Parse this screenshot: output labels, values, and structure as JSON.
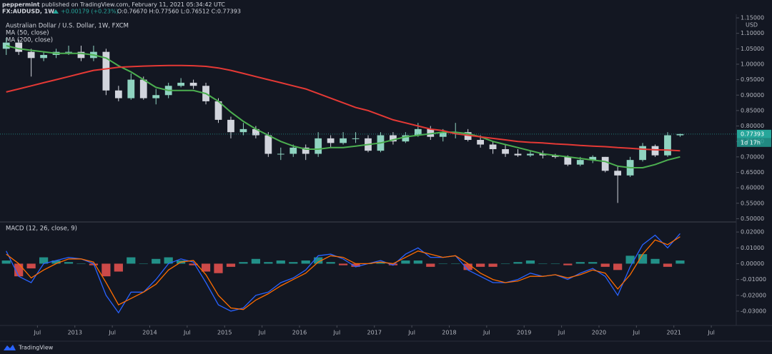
{
  "header": {
    "author": "peppermint",
    "published": "published on TradingView.com, February 11, 2021 05:34:42 UTC",
    "symbol": "FX:AUDUSD, 1W",
    "change": "+0.00179 (+0.23%)",
    "ohlc": "O:0.76670 H:0.77560 L:0.76512 C:0.77393"
  },
  "chart_data": {
    "type": "candlestick",
    "title": "Australian Dollar / U.S. Dollar, 1W, FXCM",
    "x": [
      "2012-02",
      "2012-04",
      "2012-06",
      "2012-08",
      "2012-10",
      "2012-12",
      "2013-02",
      "2013-04",
      "2013-06",
      "2013-08",
      "2013-10",
      "2013-12",
      "2014-02",
      "2014-04",
      "2014-06",
      "2014-08",
      "2014-10",
      "2014-12",
      "2015-02",
      "2015-04",
      "2015-06",
      "2015-08",
      "2015-10",
      "2015-12",
      "2016-02",
      "2016-04",
      "2016-06",
      "2016-08",
      "2016-10",
      "2016-12",
      "2017-02",
      "2017-04",
      "2017-06",
      "2017-08",
      "2017-10",
      "2017-12",
      "2018-02",
      "2018-04",
      "2018-06",
      "2018-08",
      "2018-10",
      "2018-12",
      "2019-02",
      "2019-04",
      "2019-06",
      "2019-08",
      "2019-10",
      "2019-12",
      "2020-02",
      "2020-04",
      "2020-06",
      "2020-08",
      "2020-10",
      "2020-12",
      "2021-02"
    ],
    "open": [
      1.05,
      1.07,
      1.04,
      1.02,
      1.03,
      1.04,
      1.04,
      1.02,
      1.04,
      0.915,
      0.89,
      0.95,
      0.89,
      0.9,
      0.93,
      0.94,
      0.93,
      0.88,
      0.82,
      0.78,
      0.79,
      0.77,
      0.71,
      0.71,
      0.73,
      0.71,
      0.76,
      0.745,
      0.76,
      0.76,
      0.72,
      0.77,
      0.75,
      0.77,
      0.79,
      0.765,
      0.78,
      0.78,
      0.755,
      0.74,
      0.725,
      0.71,
      0.705,
      0.71,
      0.705,
      0.7,
      0.675,
      0.69,
      0.7,
      0.655,
      0.64,
      0.69,
      0.735,
      0.705,
      0.77
    ],
    "high": [
      1.085,
      1.08,
      1.05,
      1.04,
      1.05,
      1.06,
      1.06,
      1.06,
      1.05,
      0.93,
      0.97,
      0.96,
      0.92,
      0.94,
      0.955,
      0.95,
      0.94,
      0.89,
      0.83,
      0.81,
      0.8,
      0.78,
      0.73,
      0.74,
      0.74,
      0.78,
      0.77,
      0.78,
      0.78,
      0.77,
      0.78,
      0.78,
      0.78,
      0.81,
      0.8,
      0.79,
      0.81,
      0.79,
      0.77,
      0.75,
      0.74,
      0.725,
      0.72,
      0.72,
      0.71,
      0.705,
      0.7,
      0.705,
      0.7,
      0.67,
      0.7,
      0.745,
      0.74,
      0.78,
      0.7756
    ],
    "low": [
      1.03,
      1.03,
      0.96,
      1.01,
      1.02,
      1.03,
      1.01,
      1.01,
      0.9,
      0.88,
      0.885,
      0.885,
      0.87,
      0.89,
      0.925,
      0.92,
      0.87,
      0.81,
      0.76,
      0.77,
      0.76,
      0.7,
      0.69,
      0.7,
      0.69,
      0.7,
      0.73,
      0.74,
      0.745,
      0.715,
      0.715,
      0.74,
      0.745,
      0.765,
      0.755,
      0.75,
      0.76,
      0.75,
      0.73,
      0.71,
      0.7,
      0.7,
      0.7,
      0.695,
      0.695,
      0.67,
      0.67,
      0.68,
      0.65,
      0.551,
      0.635,
      0.685,
      0.7,
      0.7,
      0.765
    ],
    "close": [
      1.07,
      1.04,
      1.02,
      1.03,
      1.04,
      1.04,
      1.02,
      1.04,
      0.915,
      0.89,
      0.95,
      0.89,
      0.9,
      0.93,
      0.94,
      0.93,
      0.88,
      0.82,
      0.78,
      0.79,
      0.77,
      0.71,
      0.71,
      0.73,
      0.71,
      0.76,
      0.745,
      0.76,
      0.76,
      0.72,
      0.77,
      0.75,
      0.77,
      0.79,
      0.765,
      0.78,
      0.78,
      0.755,
      0.74,
      0.725,
      0.71,
      0.705,
      0.71,
      0.705,
      0.7,
      0.675,
      0.69,
      0.7,
      0.655,
      0.64,
      0.69,
      0.735,
      0.705,
      0.77,
      0.77393
    ],
    "up_color": "#8fd3c0",
    "down_color": "#d1d4dc",
    "series": [
      {
        "name": "MA (50, close)",
        "color": "#4caf50",
        "values": [
          1.06,
          1.05,
          1.045,
          1.04,
          1.035,
          1.035,
          1.035,
          1.03,
          1.02,
          0.995,
          0.975,
          0.95,
          0.925,
          0.915,
          0.915,
          0.915,
          0.905,
          0.88,
          0.845,
          0.815,
          0.79,
          0.77,
          0.75,
          0.735,
          0.725,
          0.725,
          0.73,
          0.73,
          0.735,
          0.74,
          0.745,
          0.755,
          0.765,
          0.77,
          0.775,
          0.78,
          0.78,
          0.775,
          0.765,
          0.75,
          0.74,
          0.73,
          0.72,
          0.71,
          0.705,
          0.7,
          0.695,
          0.69,
          0.685,
          0.67,
          0.665,
          0.665,
          0.675,
          0.69,
          0.7
        ]
      },
      {
        "name": "MA (200, close)",
        "color": "#e53935",
        "values": [
          0.91,
          0.92,
          0.93,
          0.94,
          0.95,
          0.96,
          0.97,
          0.98,
          0.985,
          0.99,
          0.992,
          0.994,
          0.995,
          0.996,
          0.996,
          0.995,
          0.993,
          0.988,
          0.98,
          0.97,
          0.96,
          0.95,
          0.94,
          0.93,
          0.92,
          0.905,
          0.89,
          0.875,
          0.86,
          0.85,
          0.835,
          0.82,
          0.81,
          0.8,
          0.79,
          0.785,
          0.775,
          0.77,
          0.765,
          0.76,
          0.755,
          0.75,
          0.747,
          0.745,
          0.742,
          0.74,
          0.737,
          0.735,
          0.733,
          0.73,
          0.728,
          0.725,
          0.723,
          0.722,
          0.72
        ]
      }
    ],
    "xlim": [
      "2012-01",
      "2021-11"
    ],
    "xticks": [
      {
        "value": "2012-07",
        "label": "Jul"
      },
      {
        "value": "2013-01",
        "label": "2013"
      },
      {
        "value": "2013-07",
        "label": "Jul"
      },
      {
        "value": "2014-01",
        "label": "2014"
      },
      {
        "value": "2014-07",
        "label": "Jul"
      },
      {
        "value": "2015-01",
        "label": "2015"
      },
      {
        "value": "2015-07",
        "label": "Jul"
      },
      {
        "value": "2016-01",
        "label": "2016"
      },
      {
        "value": "2016-07",
        "label": "Jul"
      },
      {
        "value": "2017-01",
        "label": "2017"
      },
      {
        "value": "2017-07",
        "label": "Jul"
      },
      {
        "value": "2018-01",
        "label": "2018"
      },
      {
        "value": "2018-07",
        "label": "Jul"
      },
      {
        "value": "2019-01",
        "label": "2019"
      },
      {
        "value": "2019-07",
        "label": "Jul"
      },
      {
        "value": "2020-01",
        "label": "2020"
      },
      {
        "value": "2020-07",
        "label": "Jul"
      },
      {
        "value": "2021-01",
        "label": "2021"
      },
      {
        "value": "2021-07",
        "label": "Jul"
      }
    ],
    "ylabel": "USD",
    "ylim": [
      0.494,
      1.157
    ],
    "yticks": [
      {
        "value": 1.15,
        "label": "1.15000"
      },
      {
        "value": 1.1,
        "label": "1.10000"
      },
      {
        "value": 1.05,
        "label": "1.05000"
      },
      {
        "value": 1.0,
        "label": "1.00000"
      },
      {
        "value": 0.95,
        "label": "0.95000"
      },
      {
        "value": 0.9,
        "label": "0.90000"
      },
      {
        "value": 0.85,
        "label": "0.85000"
      },
      {
        "value": 0.8,
        "label": "0.80000"
      },
      {
        "value": 0.75,
        "label": "0.75000"
      },
      {
        "value": 0.7,
        "label": "0.70000"
      },
      {
        "value": 0.65,
        "label": "0.65000"
      },
      {
        "value": 0.6,
        "label": "0.60000"
      },
      {
        "value": 0.55,
        "label": "0.55000"
      },
      {
        "value": 0.5,
        "label": "0.50000"
      }
    ],
    "grid": false,
    "last_label": "0.77393",
    "countdown": "1d 17h",
    "last_color": "#26a69a",
    "macd": {
      "title": "MACD (12, 26, close, 9)",
      "ylim": [
        -0.0386,
        0.0259
      ],
      "yticks": [
        {
          "value": 0.02,
          "label": "0.02000"
        },
        {
          "value": 0.01,
          "label": "0.01000"
        },
        {
          "value": 0,
          "label": "0.00000"
        },
        {
          "value": -0.01,
          "label": "-0.01000"
        },
        {
          "value": -0.02,
          "label": "-0.02000"
        },
        {
          "value": -0.03,
          "label": "-0.03000"
        }
      ],
      "series": [
        {
          "color": "#2962ff",
          "values": [
            0.008,
            -0.008,
            -0.012,
            0.0,
            0.002,
            0.004,
            0.003,
            0.0,
            -0.02,
            -0.031,
            -0.018,
            -0.018,
            -0.01,
            0.0,
            0.003,
            0.001,
            -0.012,
            -0.026,
            -0.03,
            -0.028,
            -0.02,
            -0.018,
            -0.012,
            -0.009,
            -0.004,
            0.005,
            0.006,
            0.003,
            -0.002,
            0.0,
            0.002,
            -0.001,
            0.006,
            0.01,
            0.004,
            0.004,
            0.005,
            -0.004,
            -0.008,
            -0.012,
            -0.012,
            -0.01,
            -0.006,
            -0.008,
            -0.007,
            -0.01,
            -0.006,
            -0.003,
            -0.008,
            -0.02,
            -0.002,
            0.012,
            0.018,
            0.01,
            0.019
          ]
        },
        {
          "color": "#ff6d00",
          "values": [
            0.006,
            0.0,
            -0.009,
            -0.004,
            0.0,
            0.003,
            0.003,
            0.001,
            -0.012,
            -0.026,
            -0.022,
            -0.018,
            -0.013,
            -0.004,
            0.001,
            0.002,
            -0.007,
            -0.02,
            -0.028,
            -0.029,
            -0.023,
            -0.019,
            -0.014,
            -0.01,
            -0.006,
            0.001,
            0.005,
            0.004,
            0.0,
            0.0,
            0.001,
            0.0,
            0.004,
            0.008,
            0.006,
            0.004,
            0.005,
            0.0,
            -0.006,
            -0.01,
            -0.012,
            -0.011,
            -0.008,
            -0.008,
            -0.007,
            -0.009,
            -0.007,
            -0.004,
            -0.006,
            -0.016,
            -0.007,
            0.006,
            0.015,
            0.012,
            0.017
          ]
        }
      ],
      "histogram": {
        "positive_color": "#26a69a",
        "negative_color": "#ef5350",
        "values": [
          0.002,
          -0.008,
          -0.003,
          0.004,
          0.002,
          0.001,
          0.0,
          -0.001,
          -0.008,
          -0.005,
          0.004,
          0.0,
          0.003,
          0.004,
          0.002,
          -0.001,
          -0.005,
          -0.006,
          -0.002,
          0.001,
          0.003,
          0.001,
          0.002,
          0.001,
          0.002,
          0.004,
          0.001,
          -0.001,
          -0.002,
          0.0,
          0.001,
          -0.001,
          0.002,
          0.002,
          -0.002,
          0.0,
          0.0,
          -0.004,
          -0.002,
          -0.002,
          0.0,
          0.001,
          0.002,
          0.0,
          0.0,
          -0.001,
          0.001,
          0.001,
          -0.002,
          -0.004,
          0.005,
          0.006,
          0.003,
          -0.002,
          0.002
        ]
      }
    }
  },
  "footer": {
    "brand": "TradingView"
  }
}
